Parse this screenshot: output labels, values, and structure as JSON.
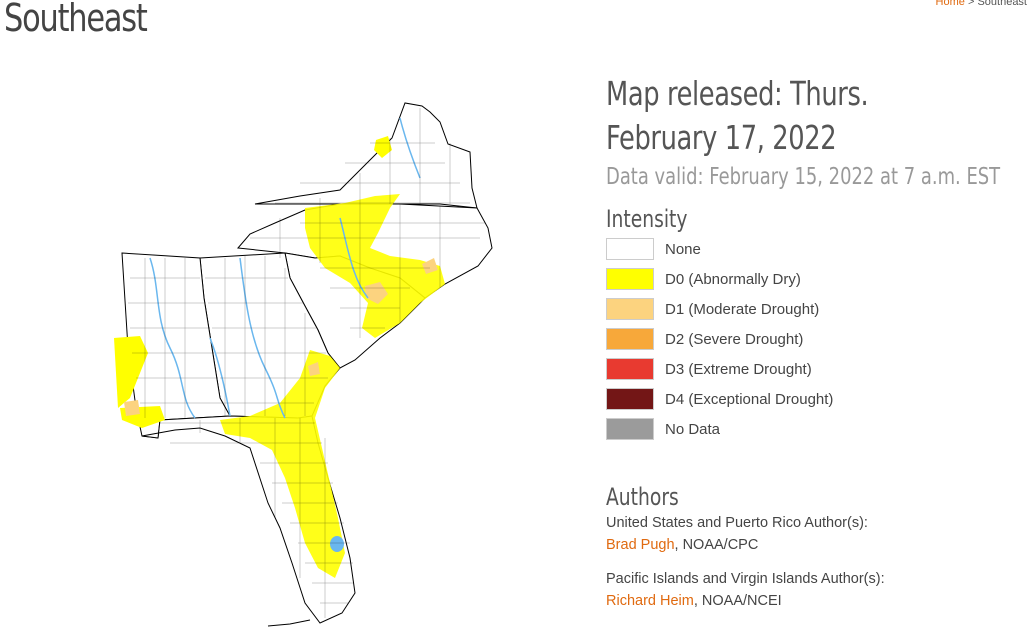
{
  "page": {
    "title": "Southeast"
  },
  "breadcrumb": {
    "home": "Home",
    "separator": ">",
    "current": "Southeast"
  },
  "map": {
    "description_icon": "drought-map",
    "colors": {
      "none": "#ffffff",
      "d0": "#ffff00",
      "d1": "#fcd37f",
      "water": "#6ab7ee",
      "border": "#000000"
    }
  },
  "release": {
    "released": "Map released: Thurs. February 17, 2022",
    "valid": "Data valid: February 15, 2022 at 7 a.m. EST"
  },
  "legend": {
    "title": "Intensity",
    "items": [
      {
        "label": "None",
        "color": "#ffffff"
      },
      {
        "label": "D0 (Abnormally Dry)",
        "color": "#ffff00"
      },
      {
        "label": "D1 (Moderate Drought)",
        "color": "#fcd37f"
      },
      {
        "label": "D2 (Severe Drought)",
        "color": "#f7a83a"
      },
      {
        "label": "D3 (Extreme Drought)",
        "color": "#e83a30"
      },
      {
        "label": "D4 (Exceptional Drought)",
        "color": "#731616"
      },
      {
        "label": "No Data",
        "color": "#9b9b9b"
      }
    ]
  },
  "authors": {
    "title": "Authors",
    "us_label": "United States and Puerto Rico Author(s):",
    "us_name": "Brad Pugh",
    "us_org": ", NOAA/CPC",
    "pi_label": "Pacific Islands and Virgin Islands Author(s):",
    "pi_name": "Richard Heim",
    "pi_org": ", NOAA/NCEI"
  }
}
